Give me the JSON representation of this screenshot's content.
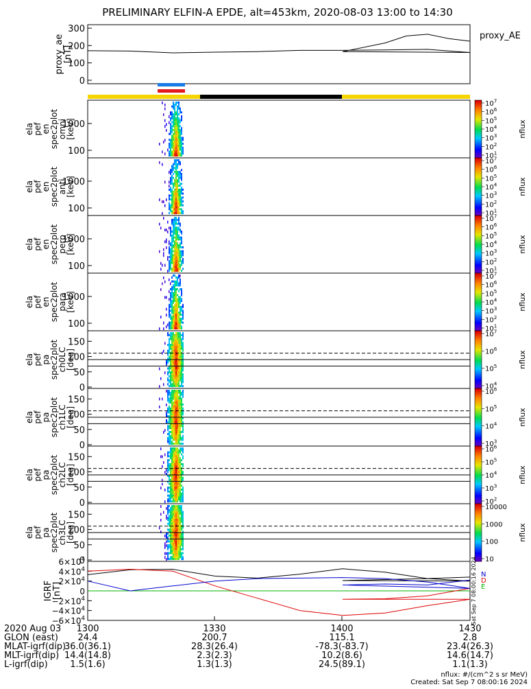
{
  "title": "PRELIMINARY ELFIN-A EPDE, alt=453km, 2020-08-03 13:00 to 14:30",
  "ae_panel": {
    "ylabel_line1": "proxy_ae",
    "ylabel_line2": "[nT]",
    "legend": "proxy_AE",
    "yticks": [
      "300",
      "200",
      "100",
      "0"
    ]
  },
  "spectrogram_panels": [
    {
      "ylabel": [
        "ela",
        "pef",
        "en",
        "spec2plot",
        "omni",
        "[keV]"
      ],
      "yticks": [
        "1000",
        "100"
      ],
      "cbar_ticks": [
        "10^7",
        "10^6",
        "10^5",
        "10^4",
        "10^3",
        "10^2",
        "10^1"
      ],
      "cbar_label": "nflux"
    },
    {
      "ylabel": [
        "ela",
        "pef",
        "en",
        "spec2plot",
        "anti",
        "[keV]"
      ],
      "yticks": [
        "1000",
        "100"
      ],
      "cbar_ticks": [
        "10^7",
        "10^6",
        "10^5",
        "10^4",
        "10^3",
        "10^2",
        "10^1"
      ],
      "cbar_label": "nflux"
    },
    {
      "ylabel": [
        "ela",
        "pef",
        "en",
        "spec2plot",
        "perp",
        "[keV]"
      ],
      "yticks": [
        "1000",
        "100"
      ],
      "cbar_ticks": [
        "10^7",
        "10^6",
        "10^5",
        "10^4",
        "10^3",
        "10^2",
        "10^1"
      ],
      "cbar_label": "nflux"
    },
    {
      "ylabel": [
        "ela",
        "pef",
        "en",
        "spec2plot",
        "para",
        "[keV]"
      ],
      "yticks": [
        "1000",
        "100"
      ],
      "cbar_ticks": [
        "10^7",
        "10^6",
        "10^5",
        "10^4",
        "10^3",
        "10^2",
        "10^1"
      ],
      "cbar_label": "nflux"
    },
    {
      "ylabel": [
        "ela",
        "pef",
        "pa",
        "spec2plot",
        "ch0LC",
        "[deg]"
      ],
      "yticks": [
        "150",
        "100",
        "50",
        "0"
      ],
      "cbar_ticks": [
        "10^7",
        "10^6",
        "10^5",
        "10^4"
      ],
      "cbar_label": "nflux"
    },
    {
      "ylabel": [
        "ela",
        "pef",
        "pa",
        "spec2plot",
        "ch1LC",
        "[deg]"
      ],
      "yticks": [
        "150",
        "100",
        "50",
        "0"
      ],
      "cbar_ticks": [
        "10^6",
        "10^5",
        "10^4",
        "10^3"
      ],
      "cbar_label": "nflux"
    },
    {
      "ylabel": [
        "ela",
        "pef",
        "pa",
        "spec2plot",
        "ch2LC",
        "[deg]"
      ],
      "yticks": [
        "150",
        "100",
        "50",
        "0"
      ],
      "cbar_ticks": [
        "10^6",
        "10^5",
        "10^4",
        "10^3",
        "10^2"
      ],
      "cbar_label": "nflux"
    },
    {
      "ylabel": [
        "ela",
        "pef",
        "pa",
        "spec2plot",
        "ch3LC",
        "[deg]"
      ],
      "yticks": [
        "150",
        "100",
        "50",
        "0"
      ],
      "cbar_ticks": [
        "10000",
        "1000",
        "100",
        "10"
      ],
      "cbar_label": "nflux"
    }
  ],
  "igrf_panel": {
    "ylabel_line1": "IGRF",
    "ylabel_line2": "[nT]",
    "yticks": [
      "6×10^4",
      "4×10^4",
      "2×10^4",
      "0",
      "−2×10^4",
      "−4×10^4",
      "−6×10^4"
    ],
    "legend": [
      "N",
      "D",
      "E"
    ],
    "side_stamp": "Sat Sep 7 08:00:16 2024"
  },
  "xaxis": {
    "rows": [
      {
        "label": "2020 Aug 03",
        "values": [
          "1300",
          "1330",
          "1400",
          "1430"
        ]
      },
      {
        "label": "GLON (east)",
        "values": [
          "24.4",
          "200.7",
          "115.1",
          "2.8"
        ]
      },
      {
        "label": "MLAT-igrf(dip)",
        "values": [
          "36.0(36.1)",
          "28.3(26.4)",
          "-78.3(-83.7)",
          "23.4(26.3)"
        ]
      },
      {
        "label": "MLT-igrf(dip)",
        "values": [
          "14.4(14.8)",
          "2.3(2.3)",
          "10.2(8.6)",
          "14.6(14.7)"
        ]
      },
      {
        "label": "L-igrf(dip)",
        "values": [
          "1.5(1.6)",
          "1.3(1.3)",
          "24.5(89.1)",
          "1.1(1.3)"
        ]
      }
    ]
  },
  "footer": {
    "units": "nflux: #/(cm^2 s sr MeV)",
    "created": "Created: Sat Sep  7 08:00:16 2024"
  },
  "chart_data": [
    {
      "type": "line",
      "ylabel": "proxy_ae [nT]",
      "ylim": [
        -20,
        320
      ],
      "x": [
        1300,
        1310,
        1320,
        1330,
        1340,
        1350,
        1360,
        1370,
        1380,
        1390,
        1400,
        1410,
        1415,
        1420,
        1425,
        1430
      ],
      "series": [
        {
          "name": "proxy_AE",
          "values": [
            170,
            168,
            158,
            162,
            165,
            172,
            172,
            175,
            178,
            160,
            165,
            215,
            255,
            265,
            240,
            225
          ],
          "color": "#000000"
        }
      ]
    },
    {
      "type": "line",
      "ylabel": "IGRF [nT]",
      "ylim": [
        -60000,
        60000
      ],
      "x": [
        1300,
        1310,
        1320,
        1330,
        1340,
        1350,
        1360,
        1370,
        1380,
        1390,
        1400,
        1410,
        1420,
        1430
      ],
      "series": [
        {
          "name": "N",
          "values": [
            33000,
            43000,
            44000,
            30000,
            26000,
            34000,
            45000,
            38000,
            25000,
            20000,
            21000,
            23000,
            25000,
            28000
          ],
          "color": "#000000"
        },
        {
          "name": "D",
          "values": [
            40000,
            44000,
            40000,
            10000,
            -15000,
            -40000,
            -50000,
            -45000,
            -30000,
            -17000,
            -17000,
            -16000,
            -10000,
            5000
          ],
          "color": "#dd0000"
        },
        {
          "name": "E",
          "values": [
            20000,
            0,
            10000,
            20000,
            25000,
            26000,
            27000,
            25000,
            18000,
            5000,
            12000,
            14000,
            12000,
            22000
          ],
          "color": "#0000cc"
        }
      ]
    }
  ],
  "colors": {
    "yellow": "#f5d400",
    "black": "#000000",
    "blue": "#1a7ae6",
    "red": "#e31a1c",
    "green": "#00b000"
  }
}
